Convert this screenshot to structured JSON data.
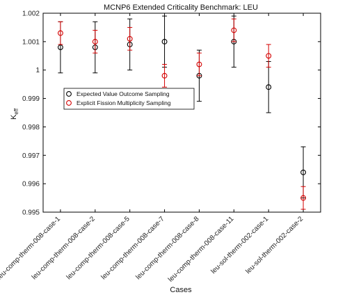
{
  "chart_data": {
    "type": "scatter",
    "title": "MCNP6 Extended Criticality Benchmark: LEU",
    "xlabel": "Cases",
    "ylabel": "K",
    "ylabel_sub": "eff",
    "ylim": [
      0.995,
      1.002
    ],
    "yticks": [
      0.995,
      0.996,
      0.997,
      0.998,
      0.999,
      1,
      1.001,
      1.002
    ],
    "ytick_labels": [
      "0.995",
      "0.996",
      "0.997",
      "0.998",
      "0.999",
      "1",
      "1.001",
      "1.002"
    ],
    "grid": false,
    "legend_position": "middle-left",
    "categories": [
      "leu-comp-therm-008-case-1",
      "leu-comp-therm-008-case-2",
      "leu-comp-therm-008-case-5",
      "leu-comp-therm-008-case-7",
      "leu-comp-therm-008-case-8",
      "leu-comp-therm-008-case-11",
      "leu-sol-therm-002-case-1",
      "leu-sol-therm-002-case-2"
    ],
    "series": [
      {
        "name": "Expected Value Outcome Sampling",
        "color": "#000000",
        "values": [
          1.0008,
          1.0008,
          1.0009,
          1.001,
          0.9998,
          1.001,
          0.9994,
          0.9964
        ],
        "errors": [
          0.0009,
          0.0009,
          0.0009,
          0.0009,
          0.0009,
          0.0009,
          0.0009,
          0.0009
        ]
      },
      {
        "name": "Explicit Fission Multiplicity Sampling",
        "color": "#d40000",
        "values": [
          1.0013,
          1.001,
          1.0011,
          0.9998,
          1.0002,
          1.0014,
          1.0005,
          0.9955
        ],
        "errors": [
          0.0004,
          0.0004,
          0.0004,
          0.0004,
          0.0004,
          0.0004,
          0.0004,
          0.0004
        ]
      }
    ]
  }
}
